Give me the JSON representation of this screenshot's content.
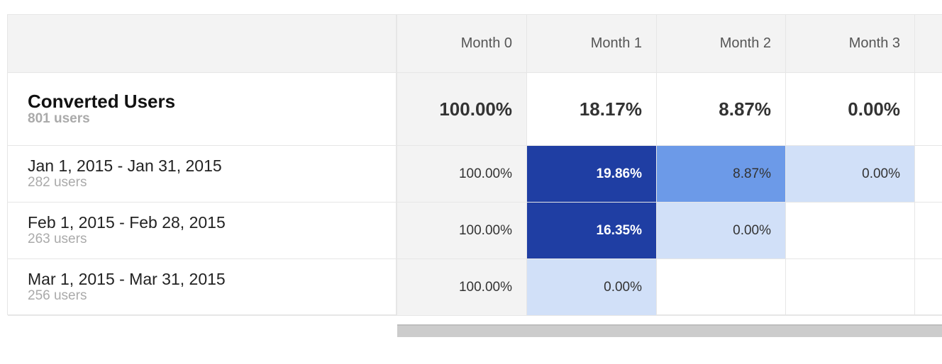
{
  "columns": [
    "Month 0",
    "Month 1",
    "Month 2",
    "Month 3"
  ],
  "total": {
    "label": "Converted Users",
    "users": "801 users",
    "values": [
      "100.00%",
      "18.17%",
      "8.87%",
      "0.00%"
    ]
  },
  "rows": [
    {
      "label": "Jan 1, 2015 - Jan 31, 2015",
      "users": "282 users",
      "values": [
        "100.00%",
        "19.86%",
        "8.87%",
        "0.00%"
      ]
    },
    {
      "label": "Feb 1, 2015 - Feb 28, 2015",
      "users": "263 users",
      "values": [
        "100.00%",
        "16.35%",
        "0.00%",
        ""
      ]
    },
    {
      "label": "Mar 1, 2015 - Mar 31, 2015",
      "users": "256 users",
      "values": [
        "100.00%",
        "0.00%",
        "",
        ""
      ]
    }
  ],
  "colors": {
    "dark": "#1f3ea3",
    "mid": "#6c9ae8",
    "light": "#d1e0f8",
    "header_bg": "#f3f3f3"
  }
}
